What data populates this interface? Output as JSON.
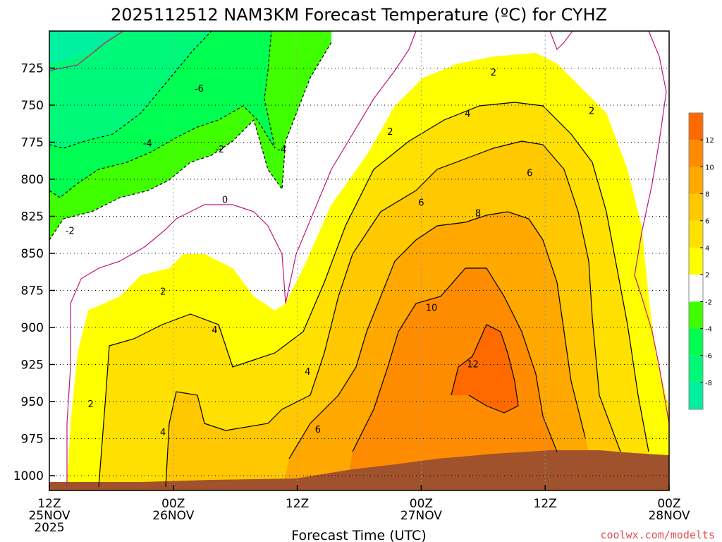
{
  "chart_data": {
    "type": "heatmap",
    "title": "2025112512 NAM3KM Forecast Temperature (ºC) for CYHZ",
    "xlabel": "Forecast Time (UTC)",
    "ylabel": "",
    "x_ticks": [
      {
        "hour": 0,
        "line1": "12Z",
        "line2": "25NOV",
        "line3": "2025"
      },
      {
        "hour": 12,
        "line1": "00Z",
        "line2": "26NOV",
        "line3": ""
      },
      {
        "hour": 24,
        "line1": "12Z",
        "line2": "",
        "line3": ""
      },
      {
        "hour": 36,
        "line1": "00Z",
        "line2": "27NOV",
        "line3": ""
      },
      {
        "hour": 48,
        "line1": "12Z",
        "line2": "",
        "line3": ""
      },
      {
        "hour": 60,
        "line1": "00Z",
        "line2": "28NOV",
        "line3": ""
      }
    ],
    "xlim": [
      0,
      60
    ],
    "y_ticks": [
      725,
      750,
      775,
      800,
      825,
      850,
      875,
      900,
      925,
      950,
      975,
      1000
    ],
    "ylim_hpa": [
      1010,
      700
    ],
    "colorbar": {
      "levels": [
        -10,
        -8,
        -6,
        -4,
        -2,
        2,
        4,
        6,
        8,
        10,
        12,
        14
      ],
      "tick_labels": [
        "-8",
        "-6",
        "-4",
        "-2",
        "2",
        "4",
        "6",
        "8",
        "10",
        "12"
      ],
      "colors": [
        "#00f0a0",
        "#00f878",
        "#00ff50",
        "#40ff00",
        "#ffffff",
        "#ffff00",
        "#ffe000",
        "#ffc800",
        "#ffa800",
        "#ff8c00",
        "#ff6a00"
      ]
    },
    "grid": true,
    "contour_labels": [
      {
        "value": "-6",
        "hour": 14.5,
        "hpa": 739
      },
      {
        "value": "-4",
        "hour": 9.5,
        "hpa": 776
      },
      {
        "value": "-2",
        "hour": 16.5,
        "hpa": 780
      },
      {
        "value": "-4",
        "hour": 22.5,
        "hpa": 780
      },
      {
        "value": "-2",
        "hour": 2.0,
        "hpa": 835
      },
      {
        "value": "0",
        "hour": 17.0,
        "hpa": 814
      },
      {
        "value": "2",
        "hour": 11.0,
        "hpa": 876
      },
      {
        "value": "4",
        "hour": 16.0,
        "hpa": 902
      },
      {
        "value": "2",
        "hour": 4.0,
        "hpa": 952
      },
      {
        "value": "4",
        "hour": 11.0,
        "hpa": 971
      },
      {
        "value": "4",
        "hour": 25.0,
        "hpa": 930
      },
      {
        "value": "6",
        "hour": 26.0,
        "hpa": 969
      },
      {
        "value": "2",
        "hour": 33.0,
        "hpa": 768
      },
      {
        "value": "4",
        "hour": 40.5,
        "hpa": 756
      },
      {
        "value": "6",
        "hour": 36.0,
        "hpa": 816
      },
      {
        "value": "8",
        "hour": 41.5,
        "hpa": 823
      },
      {
        "value": "6",
        "hour": 46.5,
        "hpa": 796
      },
      {
        "value": "2",
        "hour": 43.0,
        "hpa": 728
      },
      {
        "value": "2",
        "hour": 52.5,
        "hpa": 754
      },
      {
        "value": "10",
        "hour": 37.0,
        "hpa": 887
      },
      {
        "value": "12",
        "hour": 41.0,
        "hpa": 925
      }
    ]
  },
  "credit": "coolwx.com/modelts"
}
